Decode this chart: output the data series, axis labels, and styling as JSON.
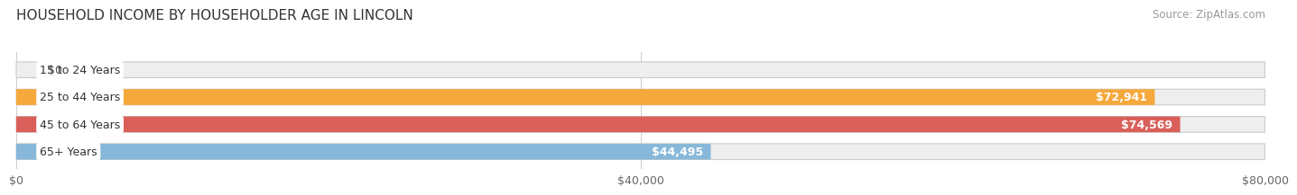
{
  "title": "HOUSEHOLD INCOME BY HOUSEHOLDER AGE IN LINCOLN",
  "source": "Source: ZipAtlas.com",
  "categories": [
    "15 to 24 Years",
    "25 to 44 Years",
    "45 to 64 Years",
    "65+ Years"
  ],
  "values": [
    0,
    72941,
    74569,
    44495
  ],
  "bar_colors": [
    "#f597aa",
    "#f5a83c",
    "#d9605a",
    "#87b8d9"
  ],
  "bg_colors": [
    "#eeeeee",
    "#eeeeee",
    "#eeeeee",
    "#eeeeee"
  ],
  "value_labels": [
    "$0",
    "$72,941",
    "$74,569",
    "$44,495"
  ],
  "xlabel_ticks": [
    0,
    40000,
    80000
  ],
  "xlabel_labels": [
    "$0",
    "$40,000",
    "$80,000"
  ],
  "xmax": 80000,
  "title_fontsize": 11,
  "source_fontsize": 8.5,
  "label_fontsize": 9,
  "tick_fontsize": 9
}
